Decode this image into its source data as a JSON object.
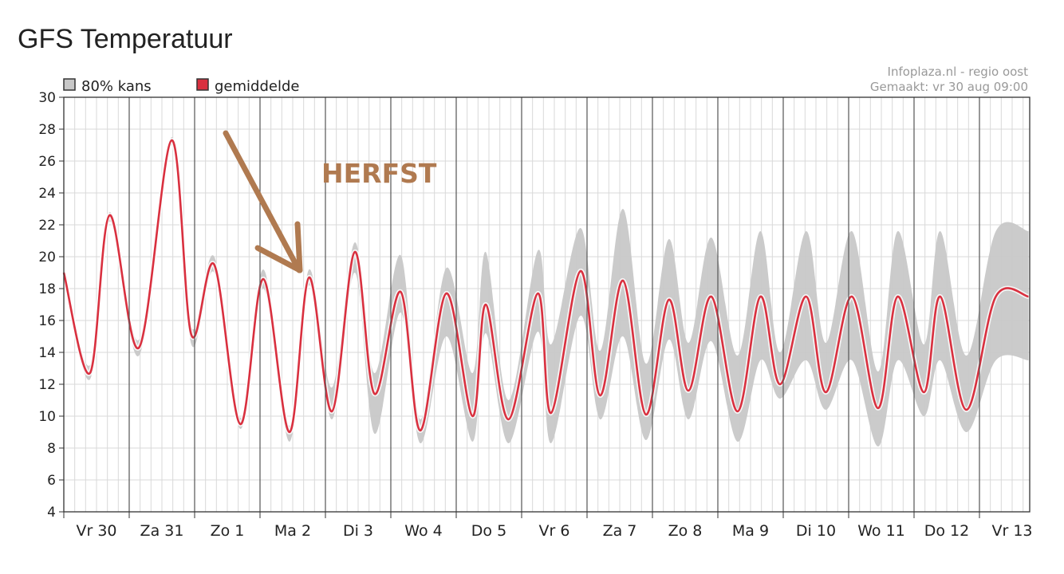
{
  "page": {
    "title": "GFS Temperatuur"
  },
  "chart_data": {
    "type": "line",
    "source_text": "Infoplaza.nl - regio oost",
    "made_text": "Gemaakt: vr 30 aug 09:00",
    "legend": [
      {
        "label": "80% kans",
        "color": "#c8c8c8"
      },
      {
        "label": "gemiddelde",
        "color": "#d9303f"
      }
    ],
    "ylim": [
      4,
      30
    ],
    "yticks": [
      4,
      6,
      8,
      10,
      12,
      14,
      16,
      18,
      20,
      22,
      24,
      26,
      28,
      30
    ],
    "day_labels": [
      "Vr 30",
      "Za 31",
      "Zo 1",
      "Ma 2",
      "Di 3",
      "Wo 4",
      "Do 5",
      "Vr 6",
      "Za 7",
      "Zo 8",
      "Ma 9",
      "Di 10",
      "Wo 11",
      "Do 12",
      "Vr 13"
    ],
    "x_range_days": [
      0,
      14.75
    ],
    "colors": {
      "mean": "#d9303f",
      "band": "#c8c8c8",
      "grid_day": "#555555",
      "grid_minor": "#d9d9d9"
    },
    "series": [
      {
        "name": "gemiddelde",
        "x": [
          0,
          0.4,
          0.7,
          1.15,
          1.65,
          1.95,
          2.3,
          2.7,
          3.05,
          3.45,
          3.75,
          4.1,
          4.45,
          4.75,
          5.15,
          5.45,
          5.85,
          6.25,
          6.45,
          6.8,
          7.25,
          7.45,
          7.9,
          8.2,
          8.55,
          8.9,
          9.25,
          9.55,
          9.9,
          10.3,
          10.65,
          10.95,
          11.35,
          11.65,
          12.05,
          12.45,
          12.75,
          13.15,
          13.4,
          13.8,
          14.25,
          14.75
        ],
        "values": [
          19,
          12.7,
          22.6,
          14.3,
          27.3,
          15.1,
          19.5,
          9.5,
          18.6,
          9,
          18.7,
          10.3,
          20.3,
          11.4,
          17.8,
          9.1,
          17.7,
          10,
          17,
          9.8,
          17.7,
          10.2,
          19.1,
          11.3,
          18.5,
          10.1,
          17.3,
          11.6,
          17.5,
          10.3,
          17.5,
          12,
          17.5,
          11.5,
          17.5,
          10.5,
          17.5,
          11.5,
          17.5,
          10.4,
          17.5,
          17.5
        ]
      },
      {
        "name": "80% kans",
        "x": [
          0,
          0.4,
          0.7,
          1.15,
          1.65,
          1.95,
          2.3,
          2.7,
          3.05,
          3.45,
          3.75,
          4.1,
          4.45,
          4.75,
          5.15,
          5.45,
          5.85,
          6.25,
          6.45,
          6.8,
          7.25,
          7.45,
          7.9,
          8.2,
          8.55,
          8.9,
          9.25,
          9.55,
          9.9,
          10.3,
          10.65,
          10.95,
          11.35,
          11.65,
          12.05,
          12.45,
          12.75,
          13.15,
          13.4,
          13.8,
          14.25,
          14.75
        ],
        "upper": [
          19.2,
          13.2,
          22.8,
          14.8,
          27.5,
          15.6,
          20,
          9.9,
          19.2,
          9.4,
          19.2,
          11.8,
          20.9,
          12.7,
          20.1,
          9.8,
          19.3,
          12.7,
          20.3,
          11,
          20.4,
          14.5,
          21.8,
          14.1,
          23,
          13.3,
          21.1,
          14.6,
          21.2,
          13.8,
          21.6,
          14,
          21.6,
          14.6,
          21.6,
          12.8,
          21.6,
          14.5,
          21.6,
          13.8,
          21.6,
          21.6
        ],
        "lower": [
          18.8,
          12.3,
          22.2,
          13.8,
          27,
          14.5,
          19,
          9.2,
          18,
          8.4,
          18.2,
          9.8,
          19,
          8.9,
          16.5,
          8.3,
          15,
          8.4,
          15.2,
          8.3,
          15.3,
          8.3,
          16.3,
          9.8,
          15,
          8.5,
          14.8,
          9.8,
          14.7,
          8.4,
          13.5,
          11.1,
          13.5,
          10.4,
          13.5,
          8.1,
          13.5,
          10,
          13.5,
          9,
          13.5,
          13.5
        ]
      }
    ],
    "annotations": [
      {
        "text": "HERFST",
        "color": "#b07a50"
      }
    ]
  }
}
